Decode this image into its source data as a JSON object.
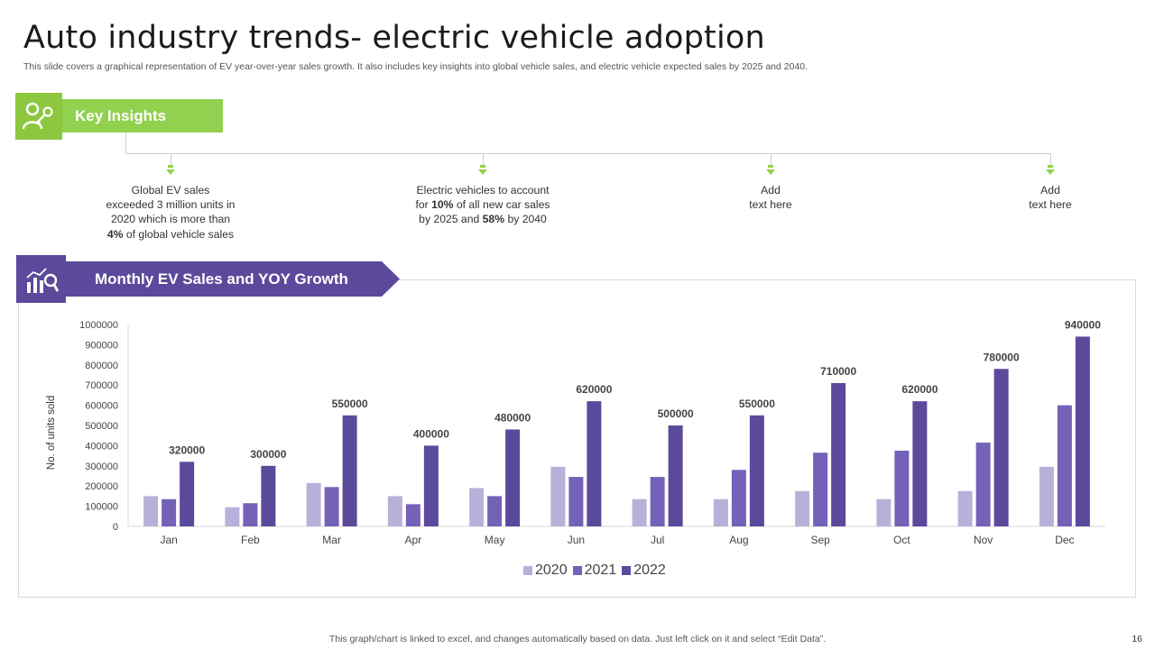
{
  "header": {
    "title": "Auto industry trends- electric vehicle adoption",
    "subtitle": "This slide covers a graphical representation of EV year-over-year  sales growth.  It also includes key insights into global vehicle sales, and electric vehicle expected sales by 2025 and 2040."
  },
  "key_insights": {
    "label": "Key Insights",
    "items": [
      {
        "line1": "Global EV sales",
        "line2": "exceeded 3 million units in",
        "line3": "2020 which is more than",
        "line4_bold": "4%",
        "line4_rest": " of global vehicle  sales"
      },
      {
        "line1": "Electric vehicles  to account",
        "line2_pre": "for ",
        "line2_bold": "10%",
        "line2_post": " of all new car sales",
        "line3_pre": "by 2025 and ",
        "line3_bold": "58%",
        "line3_post": " by 2040"
      },
      {
        "line1": "Add",
        "line2": "text here"
      },
      {
        "line1": "Add",
        "line2": "text here"
      }
    ]
  },
  "chart_section": {
    "label": "Monthly EV Sales and YOY Growth"
  },
  "colors": {
    "green_icon": "#8dc63f",
    "green_banner": "#92d050",
    "purple_dark": "#5b4a9b",
    "series_2020": "#b9b0da",
    "series_2021": "#7462b8",
    "series_2022": "#5b4a9b"
  },
  "icons": {
    "key_insights": "person-key-icon",
    "chart_section": "chart-magnifier-icon"
  },
  "chart_data": {
    "type": "bar",
    "ylabel": "No. of units sold",
    "ylim": [
      0,
      1000000
    ],
    "yticks": [
      "0",
      "100000",
      "200000",
      "300000",
      "400000",
      "500000",
      "600000",
      "700000",
      "800000",
      "900000",
      "1000000"
    ],
    "categories": [
      "Jan",
      "Feb",
      "Mar",
      "Apr",
      "May",
      "Jun",
      "Jul",
      "Aug",
      "Sep",
      "Oct",
      "Nov",
      "Dec"
    ],
    "series": [
      {
        "name": "2020",
        "values": [
          150000,
          95000,
          215000,
          150000,
          190000,
          295000,
          135000,
          135000,
          175000,
          135000,
          175000,
          295000
        ]
      },
      {
        "name": "2021",
        "values": [
          135000,
          115000,
          195000,
          110000,
          150000,
          245000,
          245000,
          280000,
          365000,
          375000,
          415000,
          600000
        ]
      },
      {
        "name": "2022",
        "values": [
          320000,
          300000,
          550000,
          400000,
          480000,
          620000,
          500000,
          550000,
          710000,
          620000,
          780000,
          940000
        ]
      }
    ],
    "data_labels": [
      "320000",
      "300000",
      "550000",
      "400000",
      "480000",
      "620000",
      "500000",
      "550000",
      "710000",
      "620000",
      "780000",
      "940000"
    ],
    "legend_position": "bottom"
  },
  "footer": {
    "note": "This graph/chart is linked to excel,  and changes automatically based on data. Just left click on it and select “Edit Data”.",
    "page_number": "16"
  }
}
